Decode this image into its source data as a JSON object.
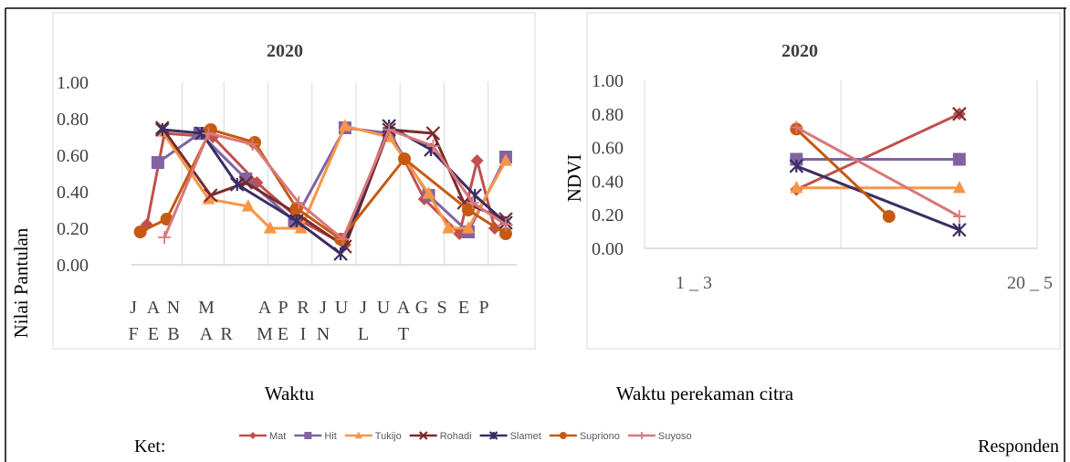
{
  "colors": {
    "Mat": "#c0504d",
    "Hit": "#8064a2",
    "Tukijo": "#f79646",
    "Rohadi": "#7b2b2b",
    "Slamet": "#3b2d63",
    "Supriono": "#c55a11",
    "Suyoso": "#d9777a",
    "grid": "#d9d9d9",
    "axis": "#bfbfbf"
  },
  "legend": {
    "items": [
      "Mat",
      "Hit",
      "Tukijo",
      "Rohadi",
      "Slamet",
      "Supriono",
      "Suyoso"
    ]
  },
  "footer": {
    "ket_label": "Ket:",
    "responden_label": "Responden"
  },
  "chart_data": [
    {
      "type": "line",
      "title": "2020",
      "ylabel": "Nilai Pantulan",
      "xlabel": "Waktu",
      "ylim": [
        0,
        1
      ],
      "yticks": [
        "0.00",
        "0.20",
        "0.40",
        "0.60",
        "0.80",
        "1.00"
      ],
      "categories": [
        "JAN",
        "FEB",
        "MAR",
        "APR",
        "MEI",
        "JUN",
        "JUL",
        "AGT",
        "SEP"
      ],
      "tick_labels_row1": [
        "J",
        "A",
        "N",
        "M",
        "",
        "A",
        "P",
        "R",
        "J",
        "U",
        "J",
        "U",
        "A",
        "G",
        "S",
        "E",
        "P"
      ],
      "tick_labels_row2": [
        "F",
        "E",
        "B",
        "A",
        "R",
        "M",
        "E",
        "I",
        "N",
        "",
        "L",
        "",
        "T",
        "",
        "",
        "",
        ""
      ],
      "grid": "vertical",
      "series": [
        {
          "name": "Mat",
          "points": [
            [
              0.1,
              0.22
            ],
            [
              0.5,
              0.72
            ],
            [
              1.6,
              0.7
            ],
            [
              2.6,
              0.45
            ],
            [
              3.6,
              0.24
            ],
            [
              4.6,
              0.11
            ],
            [
              5.6,
              0.74
            ],
            [
              6.4,
              0.36
            ],
            [
              7.2,
              0.17
            ],
            [
              7.6,
              0.57
            ],
            [
              8.0,
              0.2
            ]
          ]
        },
        {
          "name": "Hit",
          "points": [
            [
              0.35,
              0.56
            ],
            [
              1.3,
              0.72
            ],
            [
              2.35,
              0.47
            ],
            [
              3.45,
              0.24
            ],
            [
              4.6,
              0.75
            ],
            [
              5.6,
              0.72
            ],
            [
              6.5,
              0.38
            ],
            [
              7.4,
              0.18
            ],
            [
              8.25,
              0.59
            ]
          ]
        },
        {
          "name": "Tukijo",
          "points": [
            [
              0.45,
              0.73
            ],
            [
              1.5,
              0.36
            ],
            [
              2.4,
              0.32
            ],
            [
              2.9,
              0.2
            ],
            [
              3.6,
              0.2
            ],
            [
              4.6,
              0.76
            ],
            [
              5.6,
              0.7
            ],
            [
              6.5,
              0.39
            ],
            [
              6.95,
              0.2
            ],
            [
              7.4,
              0.2
            ],
            [
              8.25,
              0.57
            ]
          ]
        },
        {
          "name": "Rohadi",
          "points": [
            [
              0.45,
              0.75
            ],
            [
              1.55,
              0.38
            ],
            [
              2.35,
              0.45
            ],
            [
              3.5,
              0.28
            ],
            [
              4.6,
              0.1
            ],
            [
              5.6,
              0.74
            ],
            [
              6.6,
              0.72
            ],
            [
              7.3,
              0.34
            ],
            [
              8.25,
              0.25
            ]
          ]
        },
        {
          "name": "Slamet",
          "points": [
            [
              0.45,
              0.74
            ],
            [
              1.35,
              0.72
            ],
            [
              2.15,
              0.44
            ],
            [
              3.5,
              0.24
            ],
            [
              4.5,
              0.06
            ],
            [
              5.6,
              0.76
            ],
            [
              6.55,
              0.63
            ],
            [
              7.55,
              0.38
            ],
            [
              8.25,
              0.23
            ]
          ]
        },
        {
          "name": "Supriono",
          "points": [
            [
              -0.05,
              0.18
            ],
            [
              0.55,
              0.25
            ],
            [
              1.55,
              0.74
            ],
            [
              2.55,
              0.67
            ],
            [
              3.5,
              0.31
            ],
            [
              4.5,
              0.14
            ],
            [
              5.95,
              0.58
            ],
            [
              7.4,
              0.3
            ],
            [
              8.25,
              0.17
            ]
          ]
        },
        {
          "name": "Suyoso",
          "points": [
            [
              0.5,
              0.15
            ],
            [
              1.5,
              0.72
            ],
            [
              2.5,
              0.66
            ],
            [
              3.55,
              0.34
            ],
            [
              4.55,
              0.14
            ],
            [
              5.6,
              0.74
            ],
            [
              6.6,
              0.65
            ],
            [
              7.5,
              0.34
            ],
            [
              8.25,
              0.22
            ]
          ]
        }
      ]
    },
    {
      "type": "line",
      "title": "2020",
      "ylabel": "NDVI",
      "xlabel": "Waktu perekaman citra",
      "ylim": [
        0,
        1
      ],
      "yticks": [
        "0.00",
        "0.20",
        "0.40",
        "0.60",
        "0.80",
        "1.00"
      ],
      "categories": [
        "1 _ 3",
        "20 _ 5"
      ],
      "grid": "vertical",
      "series": [
        {
          "name": "Mat",
          "points": [
            [
              0.53,
              0.35
            ],
            [
              0.97,
              0.8
            ]
          ]
        },
        {
          "name": "Hit",
          "points": [
            [
              0.53,
              0.53
            ],
            [
              0.97,
              0.53
            ]
          ]
        },
        {
          "name": "Tukijo",
          "points": [
            [
              0.53,
              0.36
            ],
            [
              0.97,
              0.36
            ]
          ]
        },
        {
          "name": "Rohadi",
          "points": [
            [
              0.97,
              0.8
            ]
          ]
        },
        {
          "name": "Slamet",
          "points": [
            [
              0.53,
              0.49
            ],
            [
              0.97,
              0.11
            ]
          ]
        },
        {
          "name": "Supriono",
          "points": [
            [
              0.53,
              0.71
            ],
            [
              0.78,
              0.19
            ]
          ]
        },
        {
          "name": "Suyoso",
          "points": [
            [
              0.53,
              0.72
            ],
            [
              0.97,
              0.19
            ]
          ]
        }
      ]
    }
  ]
}
